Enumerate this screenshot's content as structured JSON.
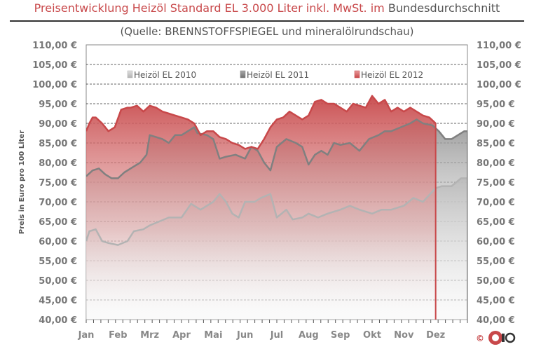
{
  "title": {
    "part1": "Preisentwicklung Heizöl Standard EL 3.000 Liter inkl. MwSt. im",
    "part2": "Bundesdurchschnitt"
  },
  "subtitle": "(Quelle: BRENNSTOFFSPIEGEL  und mineralölrundschau)",
  "logo_symbol": "©",
  "chart_data": {
    "type": "area",
    "title": "Preisentwicklung Heizöl Standard EL 3.000 Liter inkl. MwSt. im Bundesdurchschnitt",
    "subtitle": "(Quelle: BRENNSTOFFSPIEGEL  und mineralölrundschau)",
    "xlabel": "",
    "ylabel": "Preis in Euro pro 100 Liter",
    "ylim": [
      40,
      110
    ],
    "y_ticks": [
      "40,00 €",
      "45,00 €",
      "50,00 €",
      "55,00 €",
      "60,00 €",
      "65,00 €",
      "70,00 €",
      "75,00 €",
      "80,00 €",
      "85,00 €",
      "90,00 €",
      "95,00 €",
      "100,00 €",
      "105,00 €",
      "110,00 €"
    ],
    "y_tick_values": [
      40,
      45,
      50,
      55,
      60,
      65,
      70,
      75,
      80,
      85,
      90,
      95,
      100,
      105,
      110
    ],
    "categories": [
      "Jan",
      "Feb",
      "Mrz",
      "Apr",
      "Mai",
      "Jun",
      "Jul",
      "Aug",
      "Sep",
      "Okt",
      "Nov",
      "Dez"
    ],
    "x_unit": "month (0 = start of Jan, 12 = end of Dez)",
    "grid": true,
    "legend_position": "top",
    "series": [
      {
        "name": "Heizöl EL 2010",
        "color": "#b3b3b3",
        "x": [
          0,
          0.1,
          0.3,
          0.5,
          0.7,
          1.0,
          1.3,
          1.5,
          1.8,
          2.0,
          2.3,
          2.6,
          3.0,
          3.3,
          3.6,
          4.0,
          4.2,
          4.4,
          4.6,
          4.8,
          5.0,
          5.3,
          5.5,
          5.8,
          6.0,
          6.3,
          6.5,
          6.8,
          7.0,
          7.3,
          7.6,
          8.0,
          8.3,
          8.6,
          9.0,
          9.3,
          9.6,
          10.0,
          10.3,
          10.6,
          11.0,
          11.2,
          11.5,
          11.8,
          12.0
        ],
        "y": [
          60,
          62.5,
          63,
          60,
          59.5,
          59,
          60,
          62.5,
          63,
          64,
          65,
          66,
          66,
          69.5,
          68,
          70,
          72,
          70,
          67,
          66,
          70,
          70,
          71,
          72,
          66,
          68,
          65.5,
          66,
          67,
          66,
          67,
          68,
          69,
          68,
          67,
          68,
          68,
          69,
          71,
          70,
          73.5,
          74,
          74,
          76,
          76
        ]
      },
      {
        "name": "Heizöl EL 2011",
        "color": "#808080",
        "x": [
          0,
          0.2,
          0.4,
          0.6,
          0.8,
          1.0,
          1.2,
          1.5,
          1.7,
          1.9,
          2.0,
          2.2,
          2.4,
          2.6,
          2.8,
          3.0,
          3.2,
          3.4,
          3.5,
          3.8,
          4.0,
          4.2,
          4.4,
          4.7,
          5.0,
          5.2,
          5.4,
          5.6,
          5.8,
          6.0,
          6.3,
          6.6,
          6.8,
          7.0,
          7.2,
          7.4,
          7.6,
          7.8,
          8.0,
          8.3,
          8.6,
          8.9,
          9.2,
          9.4,
          9.6,
          9.9,
          10.2,
          10.4,
          10.6,
          10.9,
          11.1,
          11.3,
          11.5,
          11.7,
          11.9,
          12.0
        ],
        "y": [
          76.5,
          78,
          78.5,
          77,
          76,
          76,
          77.5,
          79,
          80,
          82,
          87,
          86.5,
          86,
          85,
          87,
          87,
          88,
          89,
          87.5,
          87,
          86,
          81,
          81.5,
          82,
          81,
          84,
          83,
          80,
          78,
          84,
          86,
          85,
          84,
          79.5,
          82,
          83,
          82,
          85,
          84.5,
          85,
          83,
          86,
          87,
          88,
          88,
          89,
          90,
          91,
          90,
          89.5,
          88,
          86,
          86,
          87,
          88,
          88
        ]
      },
      {
        "name": "Heizöl EL 2012",
        "color": "#c8484a",
        "x": [
          0,
          0.1,
          0.2,
          0.3,
          0.5,
          0.7,
          0.9,
          1.1,
          1.3,
          1.4,
          1.6,
          1.8,
          2.0,
          2.2,
          2.4,
          2.6,
          2.8,
          3.0,
          3.2,
          3.4,
          3.6,
          3.8,
          4.0,
          4.2,
          4.4,
          4.6,
          4.8,
          5.0,
          5.2,
          5.4,
          5.6,
          5.8,
          6.0,
          6.2,
          6.4,
          6.6,
          6.8,
          7.0,
          7.2,
          7.4,
          7.6,
          7.8,
          8.0,
          8.2,
          8.4,
          8.6,
          8.8,
          9.0,
          9.2,
          9.4,
          9.6,
          9.8,
          10.0,
          10.2,
          10.4,
          10.6,
          10.8,
          11.0
        ],
        "y": [
          88,
          90,
          91.5,
          91.5,
          90,
          88,
          89,
          93.5,
          94,
          94,
          94.5,
          93,
          94.5,
          94,
          93,
          92.5,
          92,
          91.5,
          91,
          90,
          87,
          88,
          88,
          86.5,
          86,
          85,
          84.5,
          83.5,
          84,
          83.5,
          86,
          89,
          91,
          91.5,
          93,
          92,
          91,
          92,
          95.5,
          96,
          95,
          95,
          94,
          93,
          95,
          94.5,
          94,
          97,
          95,
          96,
          93,
          94,
          93,
          94,
          93,
          92,
          91.5,
          90
        ]
      }
    ]
  }
}
